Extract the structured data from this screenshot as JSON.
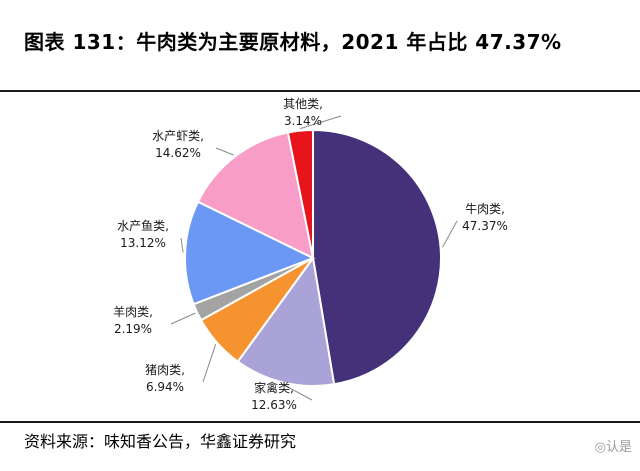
{
  "header": {
    "title": "图表 131：牛肉类为主要原材料，2021 年占比 47.37%"
  },
  "footer": {
    "source": "资料来源：味知香公告，华鑫证券研究",
    "watermark": "认是"
  },
  "chart_data": {
    "type": "pie",
    "title": "",
    "slices": [
      {
        "name": "牛肉类,",
        "value_label": "47.37%",
        "value": 47.37,
        "color": "#45307a"
      },
      {
        "name": "家禽类,",
        "value_label": "12.63%",
        "value": 12.63,
        "color": "#a9a3d8"
      },
      {
        "name": "猪肉类,",
        "value_label": "6.94%",
        "value": 6.94,
        "color": "#f4932f"
      },
      {
        "name": "羊肉类,",
        "value_label": "2.19%",
        "value": 2.19,
        "color": "#a3a3a3"
      },
      {
        "name": "水产鱼类,",
        "value_label": "13.12%",
        "value": 13.12,
        "color": "#6a98f4"
      },
      {
        "name": "水产虾类,",
        "value_label": "14.62%",
        "value": 14.62,
        "color": "#f79dc8"
      },
      {
        "name": "其他类,",
        "value_label": "3.14%",
        "value": 3.14,
        "color": "#e8141c"
      }
    ],
    "start_angle_deg": 0,
    "direction": "clockwise"
  }
}
